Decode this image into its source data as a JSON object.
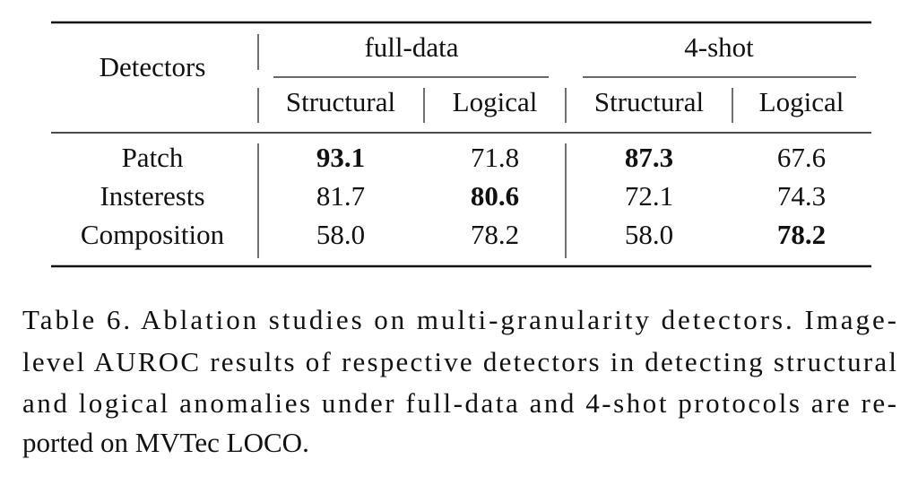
{
  "table": {
    "corner": "Detectors",
    "groups": [
      "full-data",
      "4-shot"
    ],
    "subheaders": [
      "Structural",
      "Logical",
      "Structural",
      "Logical"
    ],
    "rows": [
      {
        "label": "Patch",
        "cells": [
          {
            "text": "93.1",
            "bold": true
          },
          {
            "text": "71.8"
          },
          {
            "text": "87.3",
            "bold": true
          },
          {
            "text": "67.6"
          }
        ]
      },
      {
        "label": "Insterests",
        "cells": [
          {
            "text": "81.7"
          },
          {
            "text": "80.6",
            "bold": true
          },
          {
            "text": "72.1"
          },
          {
            "text": "74.3"
          }
        ]
      },
      {
        "label": "Composition",
        "cells": [
          {
            "text": "58.0"
          },
          {
            "text": "78.2"
          },
          {
            "text": "58.0"
          },
          {
            "text": "78.2",
            "bold": true
          }
        ]
      }
    ]
  },
  "caption": {
    "lines": [
      "Table 6.  Ablation studies on multi-granularity detectors.  Image-",
      "level AUROC results of respective detectors in detecting structural",
      "and logical anomalies under full-data and 4-shot protocols are re-",
      "ported on MVTec LOCO."
    ]
  }
}
